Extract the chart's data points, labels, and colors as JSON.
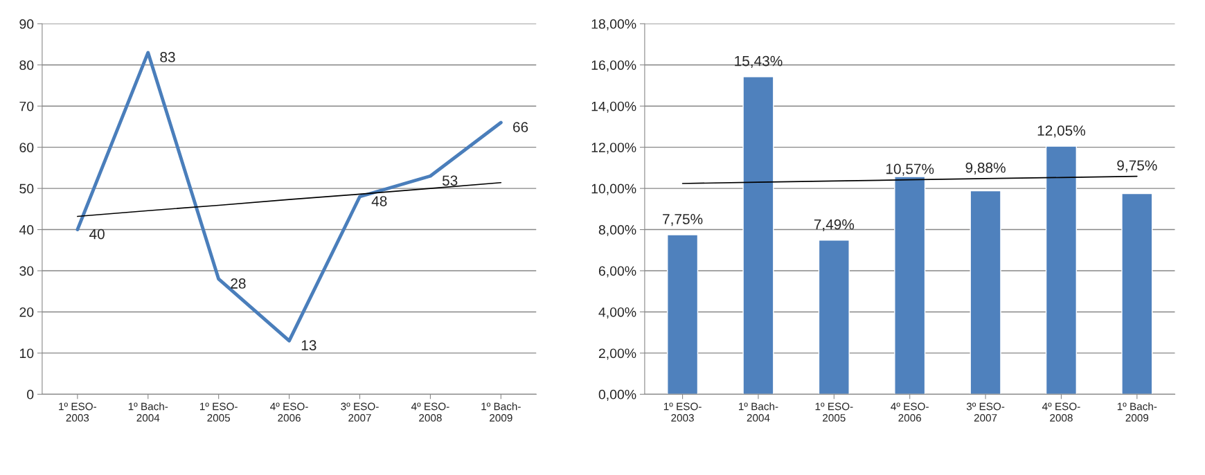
{
  "chart_data": [
    {
      "type": "line",
      "categories": [
        "1º ESO-\n2003",
        "1º Bach-\n2004",
        "1º ESO-\n2005",
        "4º ESO-\n2006",
        "3º ESO-\n2007",
        "4º ESO-\n2008",
        "1º Bach-\n2009"
      ],
      "ylim": [
        0,
        90
      ],
      "yticks": [
        0,
        10,
        20,
        30,
        40,
        50,
        60,
        70,
        80,
        90
      ],
      "grid": "y",
      "legend": false,
      "series": [
        {
          "color": "#4a7ebb",
          "values": [
            40,
            83,
            28,
            13,
            48,
            53,
            66
          ],
          "data_labels": true
        },
        {
          "type": "line",
          "color": "#000000",
          "values": [
            43.2,
            44.6,
            45.9,
            47.3,
            48.6,
            50.0,
            51.4
          ]
        }
      ]
    },
    {
      "type": "bar",
      "categories": [
        "1º ESO-\n2003",
        "1º Bach-\n2004",
        "1º ESO-\n2005",
        "4º ESO-\n2006",
        "3º ESO-\n2007",
        "4º ESO-\n2008",
        "1º Bach-\n2009"
      ],
      "ylim": [
        0,
        18
      ],
      "yticks": [
        {
          "value": 0,
          "label": "0,00%"
        },
        {
          "value": 2,
          "label": "2,00%"
        },
        {
          "value": 4,
          "label": "4,00%"
        },
        {
          "value": 6,
          "label": "6,00%"
        },
        {
          "value": 8,
          "label": "8,00%"
        },
        {
          "value": 10,
          "label": "10,00%"
        },
        {
          "value": 12,
          "label": "12,00%"
        },
        {
          "value": 14,
          "label": "14,00%"
        },
        {
          "value": 16,
          "label": "16,00%"
        },
        {
          "value": 18,
          "label": "18,00%"
        }
      ],
      "grid": "y",
      "legend": false,
      "series": [
        {
          "color": "#4f81bd",
          "values": [
            7.75,
            15.43,
            7.49,
            10.57,
            9.88,
            12.05,
            9.75
          ],
          "value_labels": [
            "7,75%",
            "15,43%",
            "7,49%",
            "10,57%",
            "9,88%",
            "12,05%",
            "9,75%"
          ]
        },
        {
          "type": "line",
          "color": "#000000",
          "values": [
            10.24,
            10.3,
            10.36,
            10.42,
            10.48,
            10.53,
            10.59
          ]
        }
      ]
    }
  ]
}
